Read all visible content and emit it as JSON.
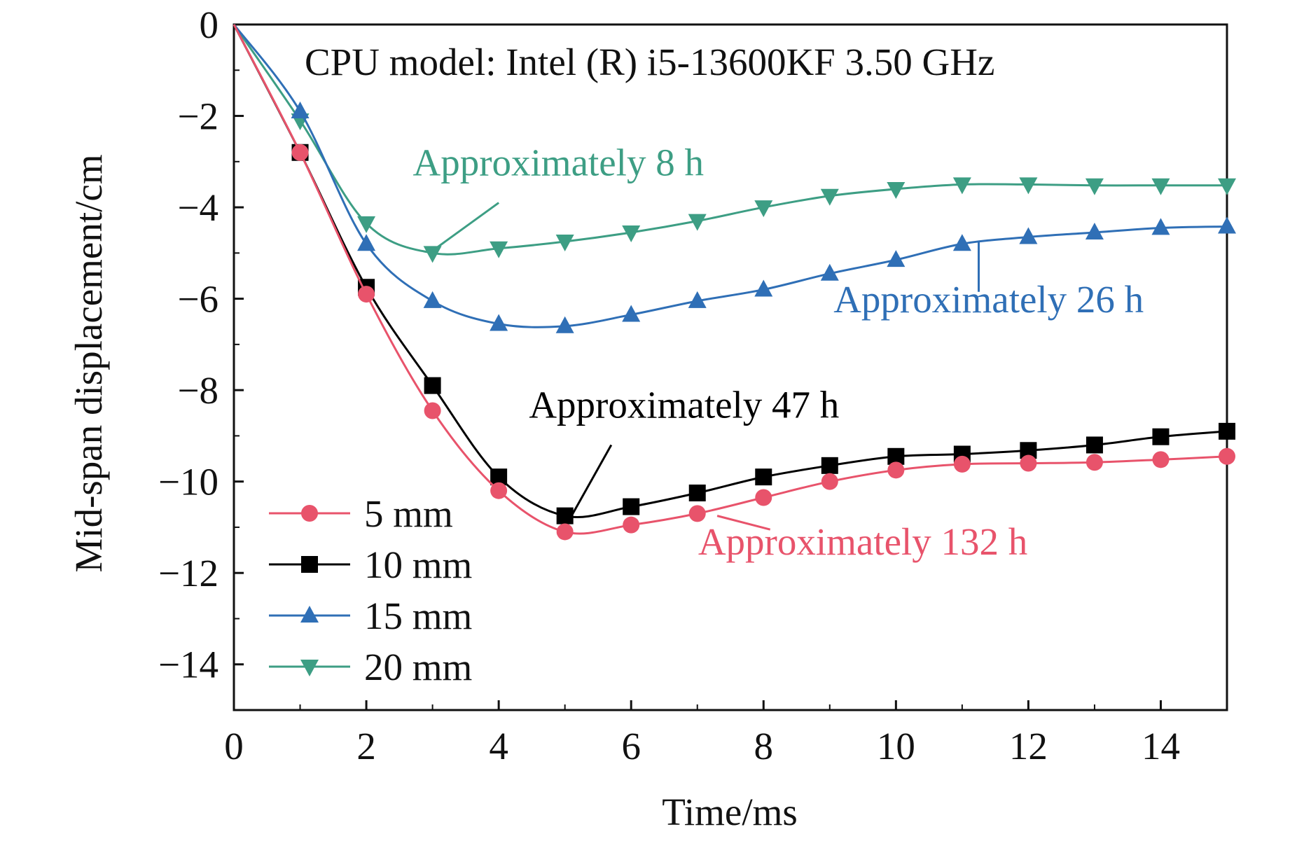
{
  "chart_data": {
    "type": "line",
    "title": "",
    "xlabel": "Time/ms",
    "ylabel": "Mid-span displacement/cm",
    "xlim": [
      0,
      15
    ],
    "ylim": [
      -15,
      0
    ],
    "xticks": [
      0,
      2,
      4,
      6,
      8,
      10,
      12,
      14
    ],
    "yticks": [
      0,
      -2,
      -4,
      -6,
      -8,
      -10,
      -12,
      -14
    ],
    "xtick_labels": [
      "0",
      "2",
      "4",
      "6",
      "8",
      "10",
      "12",
      "14"
    ],
    "ytick_labels": [
      "0",
      "−2",
      "−4",
      "−6",
      "−8",
      "−10",
      "−12",
      "−14"
    ],
    "grid": false,
    "legend_position": "bottom-left",
    "note": "CPU model: Intel (R) i5-13600KF 3.50 GHz",
    "series": [
      {
        "name": "5 mm",
        "color": "#e8536b",
        "marker": "circle",
        "x": [
          0,
          1,
          2,
          3,
          4,
          5,
          6,
          7,
          8,
          9,
          10,
          11,
          12,
          13,
          14,
          15
        ],
        "y": [
          0,
          -2.8,
          -5.9,
          -8.45,
          -10.2,
          -11.1,
          -10.95,
          -10.7,
          -10.35,
          -10.0,
          -9.75,
          -9.62,
          -9.6,
          -9.58,
          -9.52,
          -9.45
        ]
      },
      {
        "name": "10 mm",
        "color": "#000000",
        "marker": "square",
        "x": [
          0,
          1,
          2,
          3,
          4,
          5,
          6,
          7,
          8,
          9,
          10,
          11,
          12,
          13,
          14,
          15
        ],
        "y": [
          0,
          -2.8,
          -5.75,
          -7.9,
          -9.9,
          -10.75,
          -10.55,
          -10.25,
          -9.9,
          -9.65,
          -9.45,
          -9.4,
          -9.32,
          -9.2,
          -9.02,
          -8.9
        ]
      },
      {
        "name": "15 mm",
        "color": "#2f6fb6",
        "marker": "triangle-up",
        "x": [
          0,
          1,
          2,
          3,
          4,
          5,
          6,
          7,
          8,
          9,
          10,
          11,
          12,
          13,
          14,
          15
        ],
        "y": [
          0,
          -1.9,
          -4.8,
          -6.05,
          -6.55,
          -6.6,
          -6.35,
          -6.05,
          -5.8,
          -5.45,
          -5.15,
          -4.8,
          -4.65,
          -4.55,
          -4.45,
          -4.42
        ]
      },
      {
        "name": "20 mm",
        "color": "#3d9e84",
        "marker": "triangle-down",
        "x": [
          0,
          1,
          2,
          3,
          4,
          5,
          6,
          7,
          8,
          9,
          10,
          11,
          12,
          13,
          14,
          15
        ],
        "y": [
          0,
          -2.1,
          -4.35,
          -5.0,
          -4.9,
          -4.75,
          -4.55,
          -4.3,
          -4.0,
          -3.75,
          -3.6,
          -3.5,
          -3.5,
          -3.52,
          -3.52,
          -3.52
        ]
      }
    ],
    "annotations": [
      {
        "text": "Approximately 8 h",
        "color": "#3d9e84",
        "x": 4.9,
        "y": -3.3,
        "target": [
          3.0,
          -4.95
        ]
      },
      {
        "text": "Approximately 26 h",
        "color": "#2f6fb6",
        "x": 11.4,
        "y": -6.3,
        "target": [
          11.25,
          -4.75
        ]
      },
      {
        "text": "Approximately 47 h",
        "color": "#000000",
        "x": 6.8,
        "y": -8.6,
        "target": [
          5.1,
          -10.75
        ]
      },
      {
        "text": "Approximately 132 h",
        "color": "#e8536b",
        "x": 9.5,
        "y": -11.6,
        "target": [
          7.3,
          -10.75
        ]
      }
    ]
  }
}
